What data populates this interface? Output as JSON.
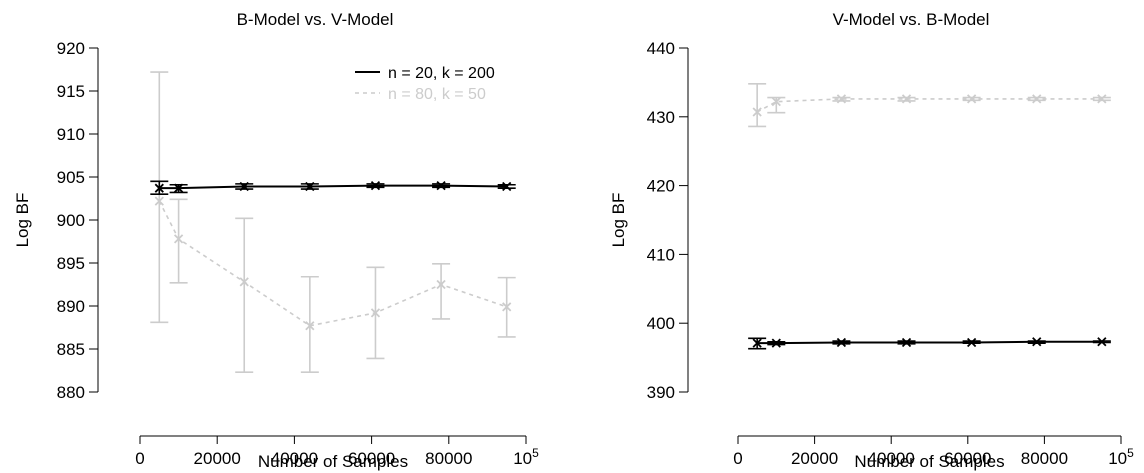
{
  "chart_data": [
    {
      "type": "line",
      "title": "B-Model vs. V-Model",
      "xlabel": "Number of Samples",
      "ylabel": "Log BF",
      "xlim": [
        0,
        100000
      ],
      "ylim": [
        880,
        920
      ],
      "xticks": [
        0,
        20000,
        40000,
        60000,
        80000,
        100000
      ],
      "xtick_labels": [
        "0",
        "20000",
        "40000",
        "60000",
        "80000",
        "10^5"
      ],
      "yticks": [
        880,
        885,
        890,
        895,
        900,
        905,
        910,
        915,
        920
      ],
      "ytick_labels": [
        "880",
        "885",
        "890",
        "895",
        "900",
        "905",
        "910",
        "915",
        "920"
      ],
      "legend_position": "top-right",
      "series": [
        {
          "name": "n = 20, k = 200",
          "color": "#000000",
          "style": "solid",
          "x": [
            5000,
            10000,
            27000,
            44000,
            61000,
            78000,
            95000
          ],
          "values": [
            903.7,
            903.7,
            903.9,
            903.9,
            904.0,
            904.0,
            903.9
          ],
          "err_low": [
            903.0,
            903.2,
            903.6,
            903.6,
            903.8,
            903.8,
            903.7
          ],
          "err_high": [
            904.5,
            904.1,
            904.2,
            904.2,
            904.2,
            904.2,
            904.1
          ]
        },
        {
          "name": "n = 80, k = 50",
          "color": "#cccccc",
          "style": "dashed",
          "x": [
            5000,
            10000,
            27000,
            44000,
            61000,
            78000,
            95000
          ],
          "values": [
            902.2,
            897.8,
            892.8,
            887.7,
            889.2,
            892.5,
            889.9
          ],
          "err_low": [
            888.1,
            892.7,
            882.3,
            882.3,
            883.9,
            888.5,
            886.4
          ],
          "err_high": [
            917.2,
            902.4,
            900.2,
            893.4,
            894.5,
            894.9,
            893.3
          ]
        }
      ]
    },
    {
      "type": "line",
      "title": "V-Model vs. B-Model",
      "xlabel": "Number of Samples",
      "ylabel": "Log BF",
      "xlim": [
        0,
        100000
      ],
      "ylim": [
        390,
        440
      ],
      "xticks": [
        0,
        20000,
        40000,
        60000,
        80000,
        100000
      ],
      "xtick_labels": [
        "0",
        "20000",
        "40000",
        "60000",
        "80000",
        "10^5"
      ],
      "yticks": [
        390,
        400,
        410,
        420,
        430,
        440
      ],
      "ytick_labels": [
        "390",
        "400",
        "410",
        "420",
        "430",
        "440"
      ],
      "series": [
        {
          "name": "n = 20, k = 200",
          "color": "#000000",
          "style": "solid",
          "x": [
            5000,
            10000,
            27000,
            44000,
            61000,
            78000,
            95000
          ],
          "values": [
            397.1,
            397.1,
            397.2,
            397.2,
            397.2,
            397.3,
            397.3
          ],
          "err_low": [
            396.3,
            396.9,
            397.0,
            397.0,
            397.1,
            397.1,
            397.2
          ],
          "err_high": [
            397.8,
            397.3,
            397.4,
            397.4,
            397.4,
            397.4,
            397.4
          ]
        },
        {
          "name": "n = 80, k = 50",
          "color": "#cccccc",
          "style": "dashed",
          "x": [
            5000,
            10000,
            27000,
            44000,
            61000,
            78000,
            95000
          ],
          "values": [
            430.7,
            432.2,
            432.6,
            432.6,
            432.6,
            432.6,
            432.6
          ],
          "err_low": [
            428.6,
            430.6,
            432.3,
            432.3,
            432.4,
            432.4,
            432.4
          ],
          "err_high": [
            434.8,
            432.8,
            432.8,
            432.8,
            432.8,
            432.8,
            432.8
          ]
        }
      ]
    }
  ]
}
